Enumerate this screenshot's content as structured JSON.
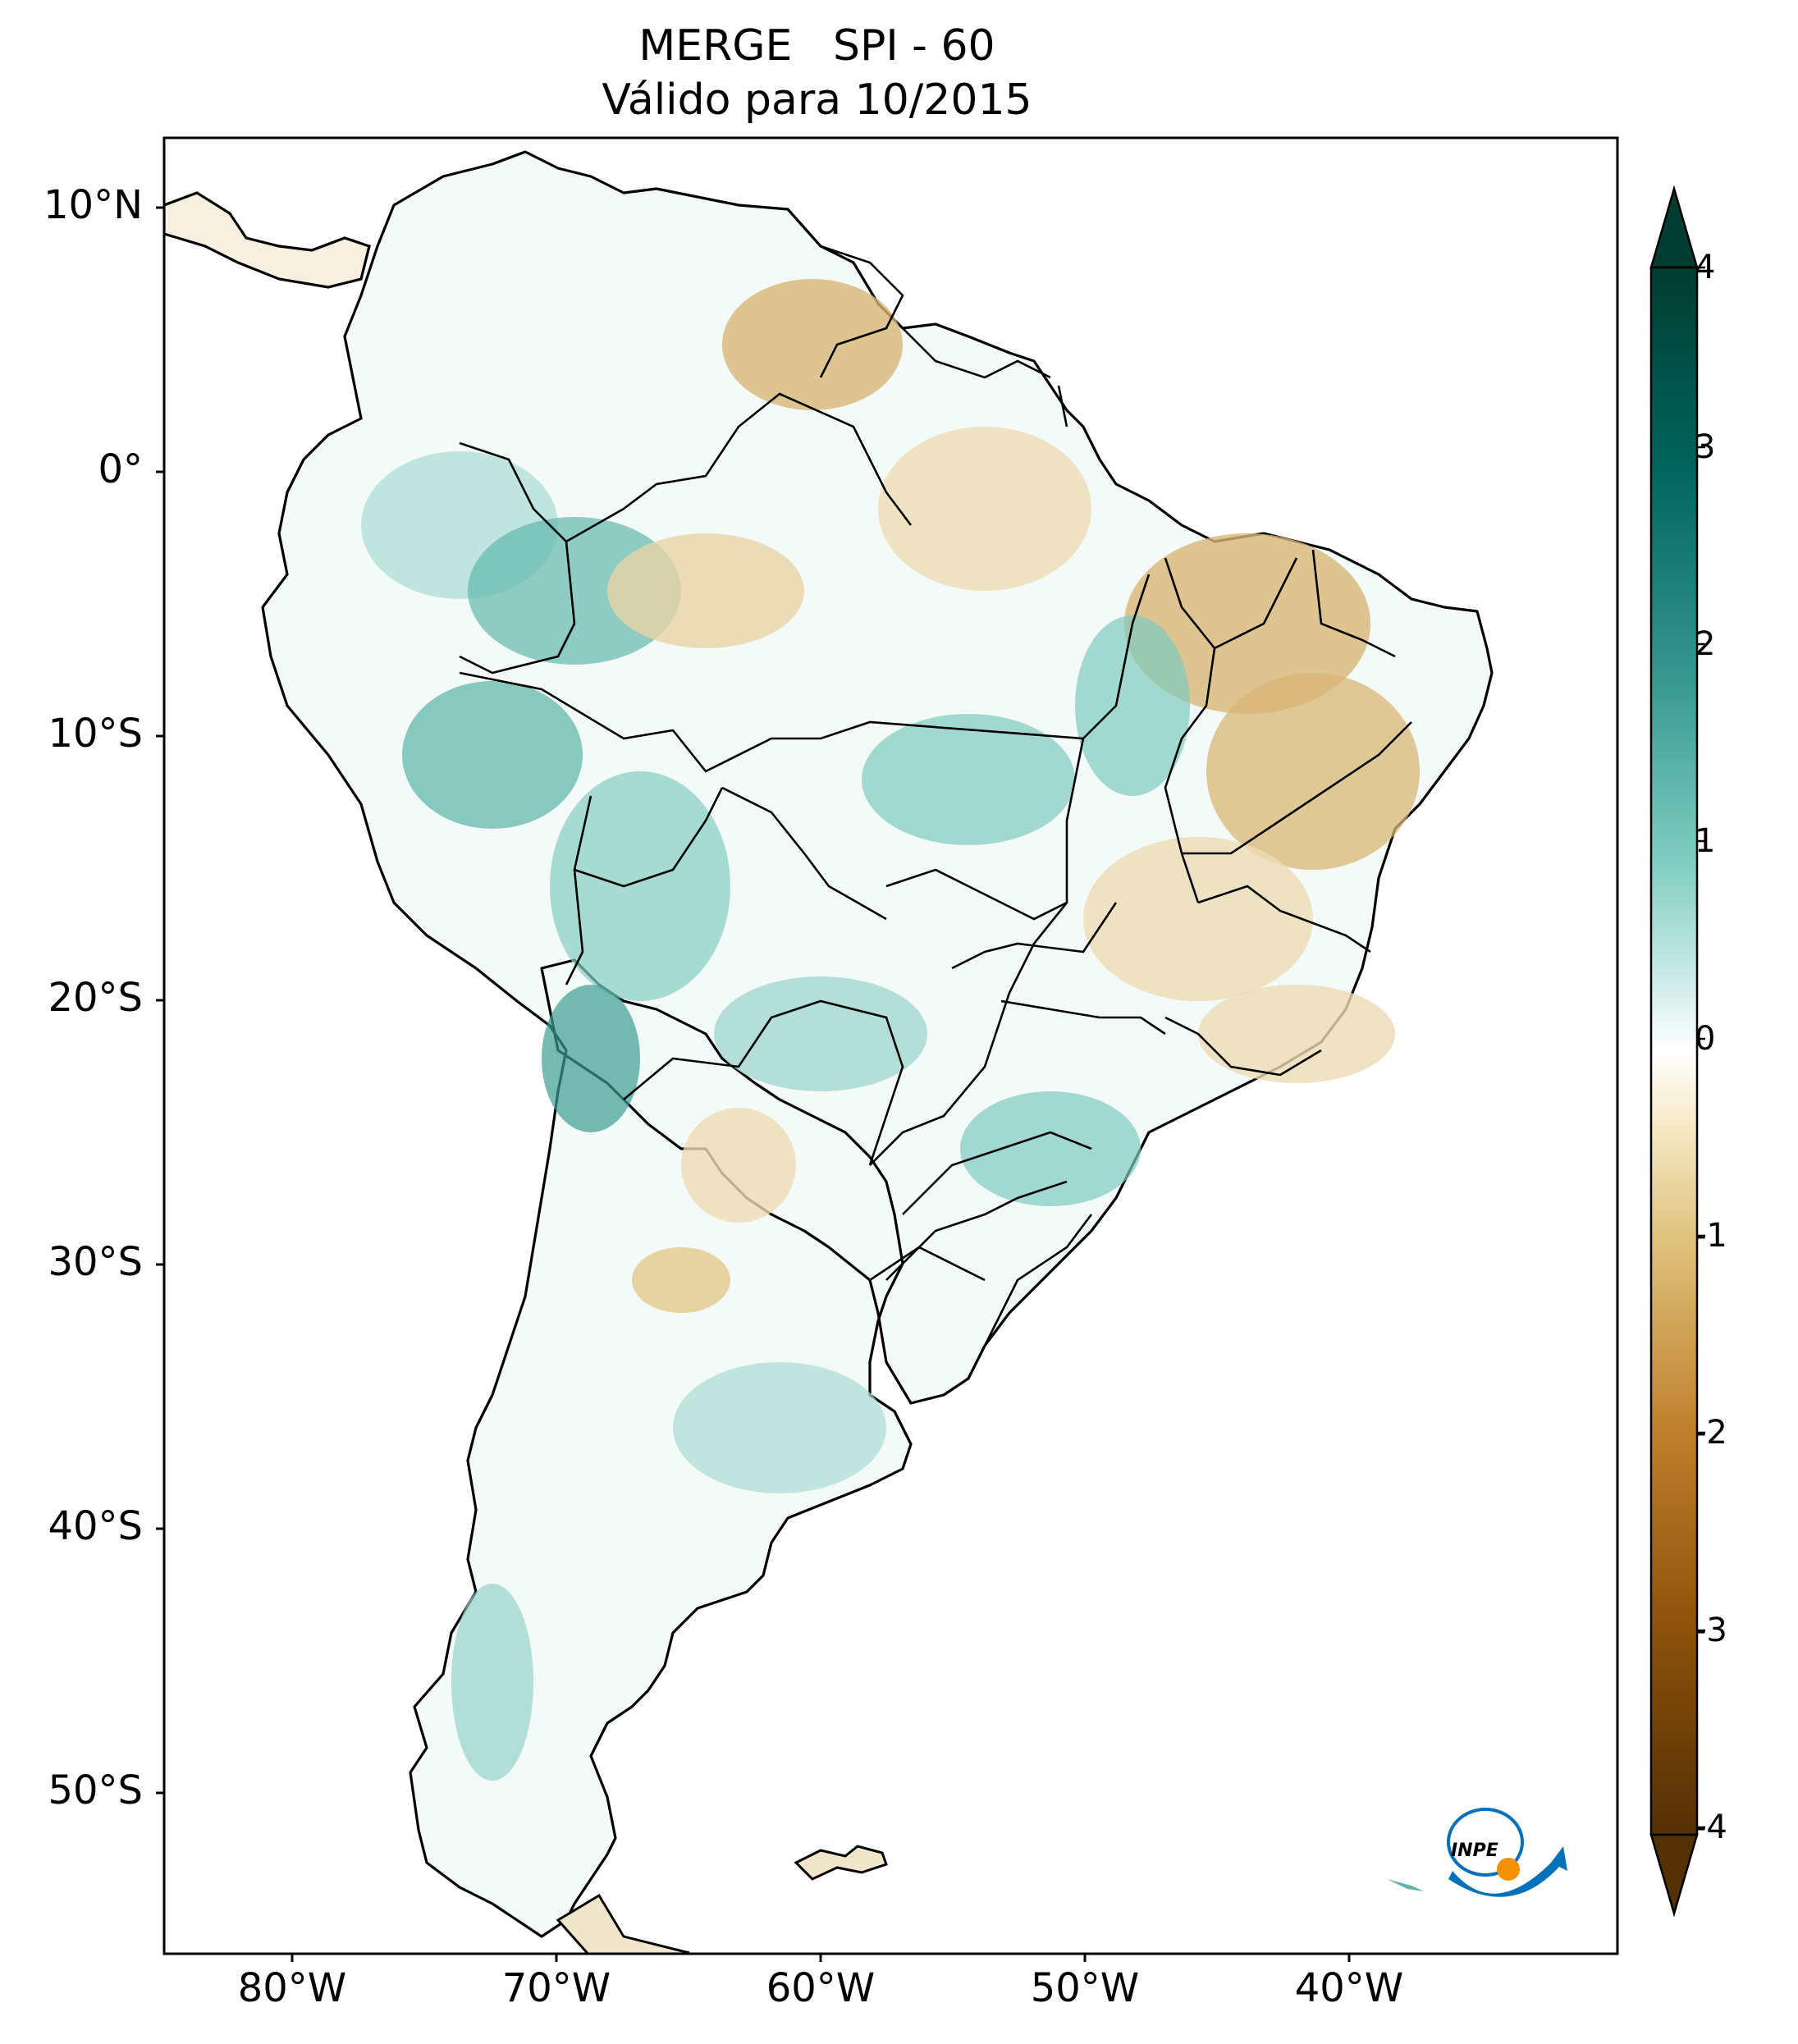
{
  "title": {
    "line1": "MERGE   SPI - 60",
    "line2": "Válido para 10/2015"
  },
  "map": {
    "lat_ticks": [
      "10°N",
      "0°",
      "10°S",
      "20°S",
      "30°S",
      "40°S",
      "50°S"
    ],
    "lon_ticks": [
      "80°W",
      "70°W",
      "60°W",
      "50°W",
      "40°W"
    ]
  },
  "colorbar": {
    "ticks": [
      "4",
      "3",
      "2",
      "1",
      "0",
      "-1",
      "-2",
      "-3",
      "-4"
    ],
    "colors": {
      "max": "#003c30",
      "high": "#01665e",
      "mid_high": "#35978f",
      "low_pos": "#80cdc1",
      "light_pos": "#c7eae5",
      "zero": "#ffffff",
      "light_neg": "#f6e8c3",
      "low_neg": "#dfc27d",
      "mid_low": "#bf812d",
      "low": "#8c510a",
      "min": "#543005"
    }
  },
  "logo": {
    "text": "INPE"
  }
}
